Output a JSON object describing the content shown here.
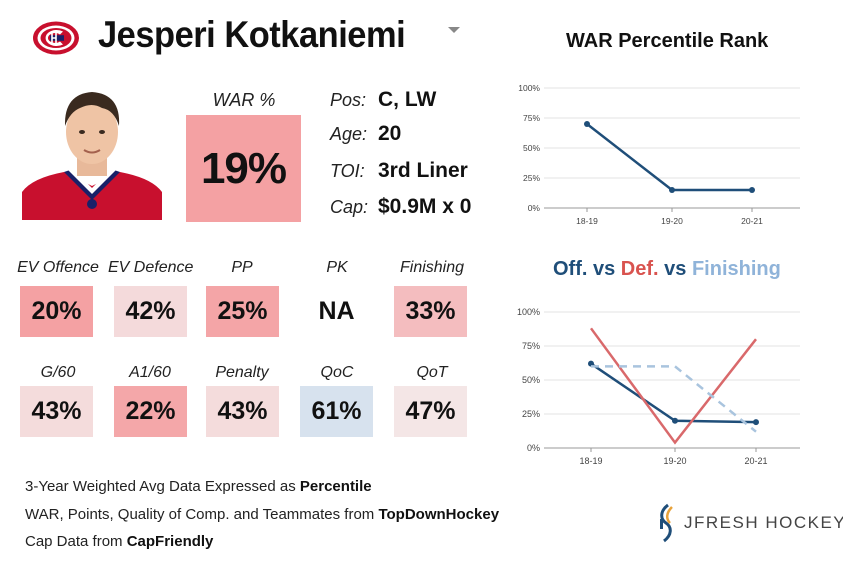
{
  "player": {
    "name": "Jesperi Kotkaniemi",
    "war_label": "WAR %",
    "war_value": "19%",
    "info": [
      {
        "label": "Pos:",
        "value": "C, LW"
      },
      {
        "label": "Age:",
        "value": "20"
      },
      {
        "label": "TOI:",
        "value": "3rd Liner"
      },
      {
        "label": "Cap:",
        "value": "$0.9M x 0"
      }
    ]
  },
  "metrics_row1": [
    {
      "label": "EV Offence",
      "value": "20%",
      "color": "#f4a1a3"
    },
    {
      "label": "EV Defence",
      "value": "42%",
      "color": "#f4dadb"
    },
    {
      "label": "PP",
      "value": "25%",
      "color": "#f4a5a7"
    },
    {
      "label": "PK",
      "value": "NA",
      "color": "#ffffff"
    },
    {
      "label": "Finishing",
      "value": "33%",
      "color": "#f4bdbf"
    }
  ],
  "metrics_row2": [
    {
      "label": "G/60",
      "value": "43%",
      "color": "#f4dcdc"
    },
    {
      "label": "A1/60",
      "value": "22%",
      "color": "#f4a7a9"
    },
    {
      "label": "Penalty",
      "value": "43%",
      "color": "#f4dcdc"
    },
    {
      "label": "QoC",
      "value": "61%",
      "color": "#d7e2ee"
    },
    {
      "label": "QoT",
      "value": "47%",
      "color": "#f4e6e6"
    }
  ],
  "chart2_title": {
    "part1": "Off.",
    "sep1": " vs ",
    "part2": "Def.",
    "sep2": " vs ",
    "part3": "Finishing"
  },
  "chart_data": [
    {
      "type": "line",
      "title": "WAR Percentile Rank",
      "categories": [
        "18-19",
        "19-20",
        "20-21"
      ],
      "series": [
        {
          "name": "WAR",
          "values": [
            70,
            15,
            15
          ],
          "color": "#1f4e79"
        }
      ],
      "yticks": [
        "0%",
        "25%",
        "50%",
        "75%",
        "100%"
      ],
      "ylim": [
        0,
        100
      ]
    },
    {
      "type": "line",
      "title": "Off. vs Def. vs Finishing",
      "categories": [
        "18-19",
        "19-20",
        "20-21"
      ],
      "series": [
        {
          "name": "Off.",
          "values": [
            62,
            20,
            19
          ],
          "color": "#1f4e79"
        },
        {
          "name": "Def.",
          "values": [
            88,
            4,
            80
          ],
          "color": "#d9696b"
        },
        {
          "name": "Finishing",
          "values": [
            60,
            60,
            12
          ],
          "color": "#a9c4de"
        }
      ],
      "yticks": [
        "0%",
        "25%",
        "50%",
        "75%",
        "100%"
      ],
      "ylim": [
        0,
        100
      ]
    }
  ],
  "footer": {
    "line1_pre": "3-Year Weighted Avg Data Expressed as ",
    "line1_bold": "Percentile",
    "line2_pre": "WAR, Points, Quality of Comp. and Teammates from ",
    "line2_bold": "TopDownHockey",
    "line3_pre": "Cap Data from ",
    "line3_bold": "CapFriendly"
  },
  "brand": {
    "name": "JFRESH HOCKEY"
  },
  "colors": {
    "canadiens_red": "#c8102e",
    "canadiens_blue": "#192168",
    "off": "#1f4e79",
    "def": "#d9696b",
    "fin": "#a9c4de"
  }
}
